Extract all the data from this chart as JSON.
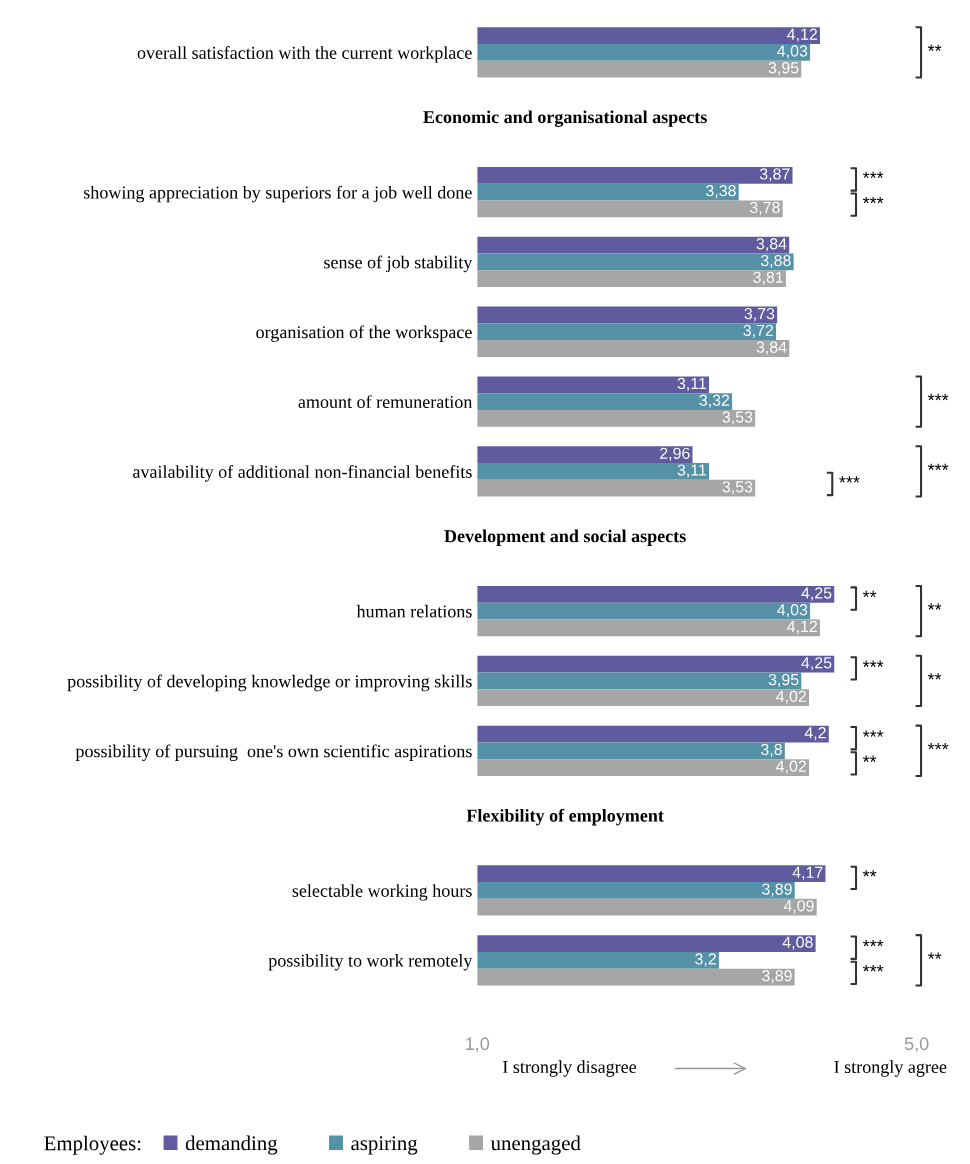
{
  "chart_data": {
    "type": "bar",
    "orientation": "horizontal",
    "categories": [
      "overall satisfaction with the current workplace",
      "Economic and organisational aspects",
      "showing appreciation by superiors for a job well done",
      "sense of job stability",
      "organisation of the workspace",
      "amount of remuneration",
      "availability of additional non-financial benefits",
      "Development and social aspects",
      "human relations",
      "possibility of developing knowledge or improving skills",
      "possibility of pursuing  one's own scientific aspirations",
      "Flexibility of employment",
      "selectable working hours",
      "possibility to work remotely"
    ],
    "series": [
      {
        "name": "demanding",
        "color": "#5f5b9e",
        "values": [
          4.12,
          null,
          3.87,
          3.84,
          3.73,
          3.11,
          2.96,
          null,
          4.25,
          4.25,
          4.2,
          null,
          4.17,
          4.08
        ],
        "value_labels": [
          "4,12",
          null,
          "3,87",
          "3,84",
          "3,73",
          "3,11",
          "2,96",
          null,
          "4,25",
          "4,25",
          "4,2",
          null,
          "4,17",
          "4,08"
        ]
      },
      {
        "name": "aspiring",
        "color": "#5592a8",
        "values": [
          4.03,
          null,
          3.38,
          3.88,
          3.72,
          3.32,
          3.11,
          null,
          4.03,
          3.95,
          3.8,
          null,
          3.89,
          3.2
        ],
        "value_labels": [
          "4,03",
          null,
          "3,38",
          "3,88",
          "3,72",
          "3,32",
          "3,11",
          null,
          "4,03",
          "3,95",
          "3,8",
          null,
          "3,89",
          "3,2"
        ]
      },
      {
        "name": "unengaged",
        "color": "#a6a6a6",
        "values": [
          3.95,
          null,
          3.78,
          3.81,
          3.84,
          3.53,
          3.53,
          null,
          4.12,
          4.02,
          4.02,
          null,
          4.09,
          3.89
        ],
        "value_labels": [
          "3,95",
          null,
          "3,78",
          "3,81",
          "3,84",
          "3,53",
          "3,53",
          null,
          "4,12",
          "4,02",
          "4,02",
          null,
          "4,09",
          "3,89"
        ]
      }
    ],
    "xlim": [
      1,
      5
    ],
    "xticks": [
      {
        "value": 1,
        "label": "1,0"
      },
      {
        "value": 5,
        "label": "5,0"
      }
    ],
    "legend": "bottom left",
    "legend_title": "Employees:",
    "grid": false,
    "annotations": [
      "**",
      "***",
      "***",
      "***",
      "***",
      "***",
      "**",
      "**",
      "***",
      "**",
      "***",
      "**",
      "***",
      "**",
      "***",
      "***",
      "**",
      "I strongly disagree",
      "I strongly agree"
    ]
  }
}
